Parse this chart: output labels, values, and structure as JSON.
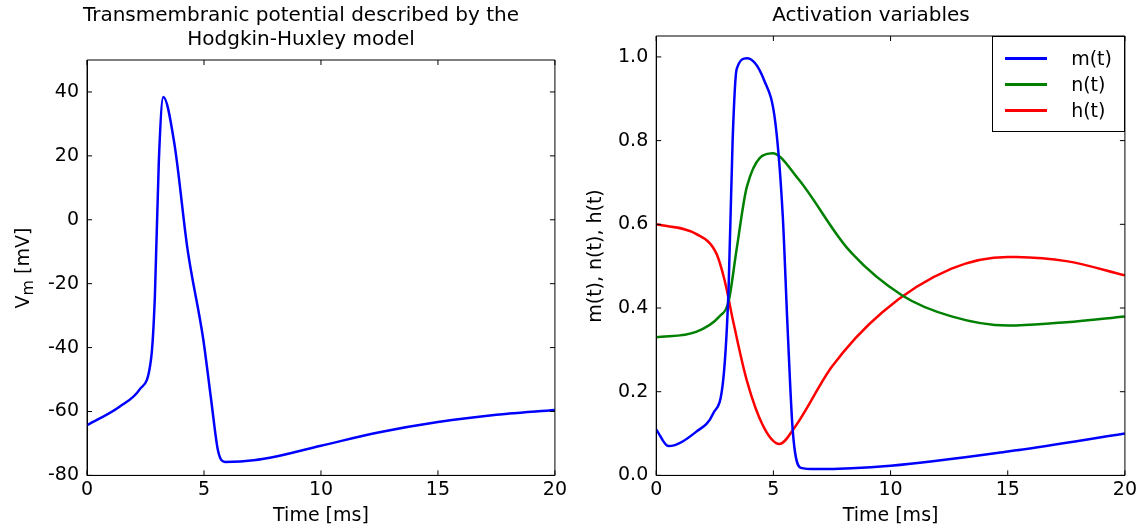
{
  "chart_data": [
    {
      "type": "line",
      "title": "Transmembranic potential described by the Hodgkin-Huxley model",
      "xlabel": "Time [ms]",
      "ylabel": "V$_{m}$ [mV]",
      "xlim": [
        0,
        20
      ],
      "xticks": [
        0,
        5,
        10,
        15,
        20
      ],
      "ylim": [
        -80,
        50
      ],
      "yticks": [
        -80,
        -60,
        -40,
        -20,
        0,
        20,
        40
      ],
      "grid": false,
      "legend": false,
      "marker": "none",
      "series": [
        {
          "color": "#0000ff",
          "x": [
            0,
            1.39,
            2.26,
            2.74,
            2.9,
            3.07,
            3.26,
            3.73,
            4.3,
            4.96,
            5.3,
            5.6,
            5.9,
            7.5,
            10,
            12.5,
            15,
            17.5,
            20
          ],
          "values": [
            -64.3,
            -58.5,
            -53,
            -43.4,
            -24,
            18.5,
            38.4,
            24,
            -9.4,
            -37,
            -56,
            -72.3,
            -75.8,
            -74.9,
            -70.7,
            -66.5,
            -63.3,
            -61,
            -59.5
          ]
        }
      ]
    },
    {
      "type": "line",
      "title": "Activation variables",
      "xlabel": "Time [ms]",
      "ylabel": "m(t), n(t), h(t)",
      "xlim": [
        0,
        20
      ],
      "xticks": [
        0,
        5,
        10,
        15,
        20
      ],
      "ylim": [
        0,
        1.05
      ],
      "yticks": [
        {
          "value": 0,
          "label": "0.0"
        },
        0.2,
        0.4,
        0.6,
        0.8,
        {
          "value": 1,
          "label": "1.0"
        }
      ],
      "grid": false,
      "legend": "top right",
      "marker": "none",
      "series": [
        {
          "name": "m(t)",
          "color": "#0000ff",
          "x": [
            0,
            0.52,
            1.7,
            2.43,
            2.87,
            3.09,
            3.26,
            3.43,
            3.87,
            4.6,
            5.09,
            5.4,
            5.6,
            5.83,
            6.17,
            6.8,
            10,
            15,
            20
          ],
          "values": [
            0.11,
            0.07,
            0.104,
            0.148,
            0.234,
            0.45,
            0.8,
            0.97,
            0.997,
            0.945,
            0.84,
            0.62,
            0.36,
            0.104,
            0.018,
            0.015,
            0.023,
            0.057,
            0.1
          ]
        },
        {
          "name": "n(t)",
          "color": "#008000",
          "x": [
            0,
            1.7,
            2.7,
            3.09,
            3.43,
            3.87,
            4.96,
            6.04,
            8.2,
            10.5,
            12.6,
            15,
            17.5,
            20
          ],
          "values": [
            0.33,
            0.343,
            0.38,
            0.416,
            0.54,
            0.69,
            0.77,
            0.71,
            0.54,
            0.43,
            0.38,
            0.358,
            0.366,
            0.38
          ]
        },
        {
          "name": "h(t)",
          "color": "#ff0000",
          "x": [
            0,
            1.7,
            2.57,
            2.91,
            3.3,
            3.87,
            4.6,
            5.26,
            5.9,
            7.5,
            9.65,
            12.6,
            15,
            17.5,
            20
          ],
          "values": [
            0.6,
            0.577,
            0.53,
            0.468,
            0.364,
            0.226,
            0.114,
            0.075,
            0.114,
            0.26,
            0.39,
            0.494,
            0.522,
            0.512,
            0.478
          ]
        }
      ]
    }
  ]
}
